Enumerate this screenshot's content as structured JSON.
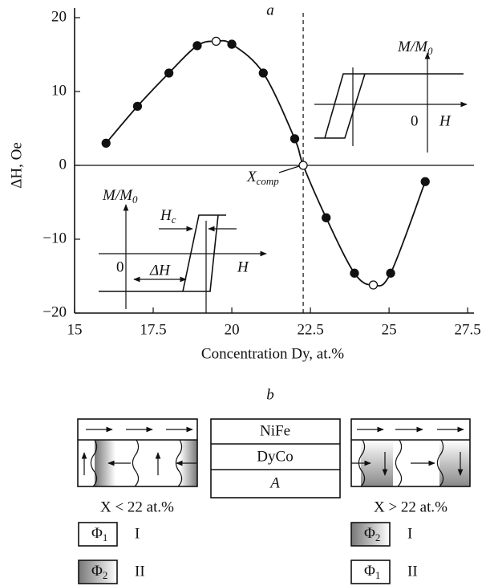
{
  "chart_data": {
    "type": "line",
    "panel_label": "a",
    "xlabel": "Concentration Dy, at.%",
    "ylabel": "ΔH, Oe",
    "x": [
      16,
      17,
      18,
      18.9,
      19.5,
      20,
      21,
      22,
      22.27,
      23,
      23.9,
      24.5,
      25.05,
      26.15
    ],
    "values": [
      3,
      8,
      12.5,
      16.2,
      16.8,
      16.4,
      12.5,
      3.6,
      0,
      -7.1,
      -14.6,
      -16.2,
      -14.6,
      -2.2
    ],
    "markers": [
      "filled",
      "filled",
      "filled",
      "filled",
      "open",
      "filled",
      "filled",
      "filled",
      "open",
      "filled",
      "filled",
      "open",
      "filled",
      "filled"
    ],
    "color": "#111111",
    "xlim": [
      15,
      27.7
    ],
    "ylim": [
      -20,
      21.3
    ],
    "xticks": [
      15,
      17.5,
      20,
      22.5,
      25,
      27.5
    ],
    "yticks": [
      {
        "value": -20,
        "label": "−20"
      },
      {
        "value": -10,
        "label": "−10"
      },
      0,
      10,
      20
    ],
    "annotation": {
      "text": "X",
      "sub": "comp"
    },
    "insets": [
      {
        "ylabel": {
          "text": "M/M",
          "sub": "0"
        },
        "origin": "0",
        "xlabel": "H"
      },
      {
        "ylabel": {
          "text": "M/M",
          "sub": "0"
        },
        "origin": "0",
        "xlabel": "H",
        "coercive": {
          "text": "H",
          "sub": "c"
        },
        "shift": "ΔH"
      }
    ]
  },
  "diagram": {
    "panel_label": "b",
    "layers": [
      "NiFe",
      "DyCo",
      "A"
    ],
    "left": {
      "caption": "X < 22 at.%",
      "legend": [
        {
          "symbol": "Φ",
          "sub": "1",
          "label": "I",
          "shaded": false
        },
        {
          "symbol": "Φ",
          "sub": "2",
          "label": "II",
          "shaded": true
        }
      ]
    },
    "right": {
      "caption": "X > 22 at.%",
      "legend": [
        {
          "symbol": "Φ",
          "sub": "2",
          "label": "I",
          "shaded": true
        },
        {
          "symbol": "Φ",
          "sub": "1",
          "label": "II",
          "shaded": false
        }
      ]
    }
  }
}
